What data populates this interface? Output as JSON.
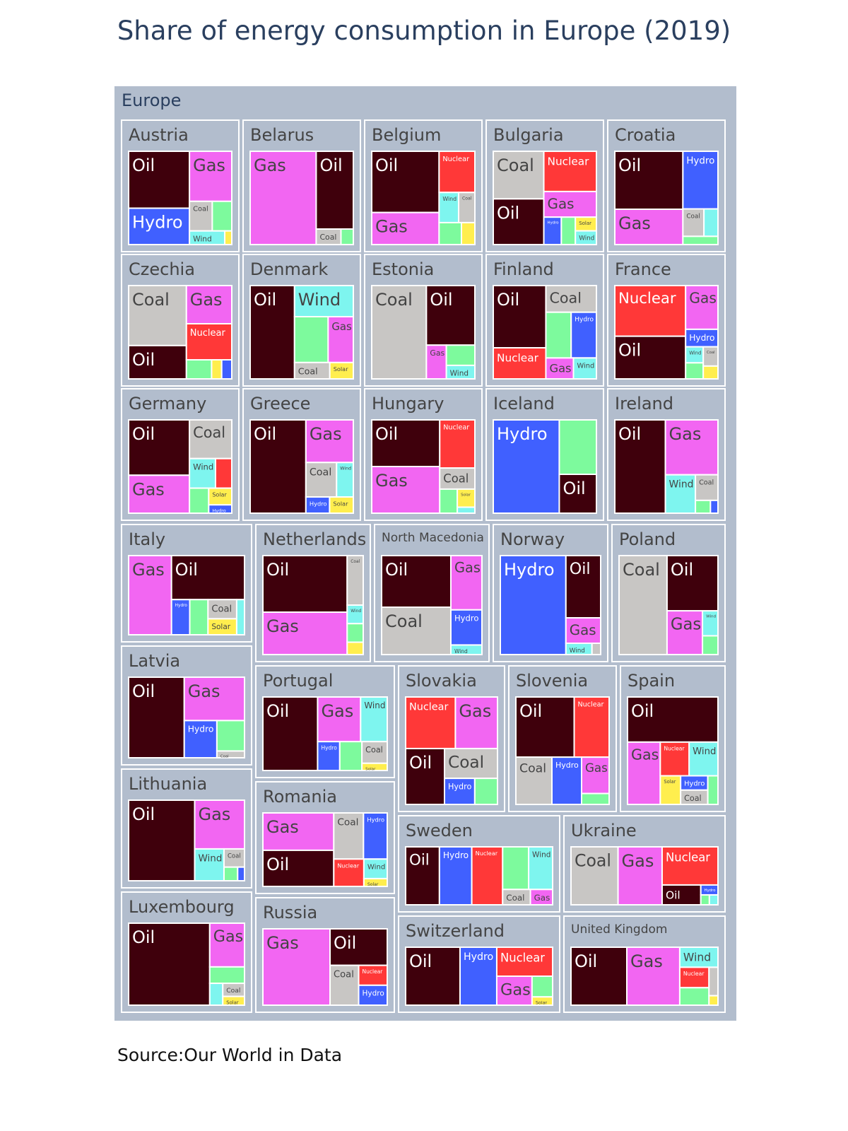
{
  "chart_data": {
    "type": "treemap",
    "title": "Share of energy consumption in Europe (2019)",
    "source": "Source:Our World in Data",
    "root": "Europe",
    "colors": {
      "Oil": "#3f000c",
      "Gas": "#f266f2",
      "Coal": "#c8c6c4",
      "Hydro": "#4060ff",
      "Nuclear": "#ff3838",
      "Wind": "#7ef5ef",
      "Solar": "#ffee4e",
      "Other renewables": "#7dfa9d",
      "parent": "#b2bdcd",
      "root": "#b2bdcd"
    },
    "countries": [
      {
        "name": "Austria",
        "segments": [
          [
            "Oil",
            36
          ],
          [
            "Gas",
            22
          ],
          [
            "Hydro",
            23
          ],
          [
            "Coal",
            7
          ],
          [
            "Other renewables",
            6
          ],
          [
            "Wind",
            5
          ],
          [
            "Solar",
            1
          ]
        ]
      },
      {
        "name": "Belarus",
        "segments": [
          [
            "Gas",
            64
          ],
          [
            "Oil",
            30
          ],
          [
            "Coal",
            4
          ],
          [
            "Other renewables",
            2
          ]
        ]
      },
      {
        "name": "Belgium",
        "segments": [
          [
            "Oil",
            42
          ],
          [
            "Gas",
            22
          ],
          [
            "Nuclear",
            15
          ],
          [
            "Coal",
            5
          ],
          [
            "Wind",
            6
          ],
          [
            "Other renewables",
            5
          ],
          [
            "Solar",
            3
          ]
        ]
      },
      {
        "name": "Bulgaria",
        "segments": [
          [
            "Oil",
            24
          ],
          [
            "Nuclear",
            22
          ],
          [
            "Coal",
            25
          ],
          [
            "Gas",
            14
          ],
          [
            "Hydro",
            5
          ],
          [
            "Other renewables",
            4
          ],
          [
            "Solar",
            3
          ],
          [
            "Wind",
            3
          ]
        ]
      },
      {
        "name": "Croatia",
        "segments": [
          [
            "Oil",
            41
          ],
          [
            "Hydro",
            21
          ],
          [
            "Gas",
            25
          ],
          [
            "Coal",
            6
          ],
          [
            "Wind",
            4
          ],
          [
            "Other renewables",
            3
          ]
        ]
      },
      {
        "name": "Czechia",
        "segments": [
          [
            "Coal",
            36
          ],
          [
            "Gas",
            18
          ],
          [
            "Nuclear",
            17
          ],
          [
            "Oil",
            20
          ],
          [
            "Other renewables",
            5
          ],
          [
            "Solar",
            2
          ],
          [
            "Hydro",
            2
          ]
        ]
      },
      {
        "name": "Denmark",
        "segments": [
          [
            "Oil",
            43
          ],
          [
            "Wind",
            19
          ],
          [
            "Gas",
            12
          ],
          [
            "Other renewables",
            16
          ],
          [
            "Coal",
            6
          ],
          [
            "Solar",
            4
          ]
        ]
      },
      {
        "name": "Estonia",
        "segments": [
          [
            "Coal",
            53
          ],
          [
            "Oil",
            30
          ],
          [
            "Gas",
            7
          ],
          [
            "Other renewables",
            6
          ],
          [
            "Wind",
            4
          ]
        ]
      },
      {
        "name": "Finland",
        "segments": [
          [
            "Oil",
            34
          ],
          [
            "Coal",
            14
          ],
          [
            "Nuclear",
            17
          ],
          [
            "Other renewables",
            12
          ],
          [
            "Hydro",
            12
          ],
          [
            "Gas",
            6
          ],
          [
            "Wind",
            5
          ]
        ]
      },
      {
        "name": "France",
        "segments": [
          [
            "Nuclear",
            38
          ],
          [
            "Gas",
            15
          ],
          [
            "Oil",
            32
          ],
          [
            "Hydro",
            6
          ],
          [
            "Wind",
            3
          ],
          [
            "Other renewables",
            3
          ],
          [
            "Coal",
            3
          ],
          [
            "Solar",
            2
          ]
        ]
      },
      {
        "name": "Germany",
        "segments": [
          [
            "Oil",
            35
          ],
          [
            "Coal",
            17
          ],
          [
            "Gas",
            24
          ],
          [
            "Wind",
            8
          ],
          [
            "Nuclear",
            5
          ],
          [
            "Other renewables",
            5
          ],
          [
            "Solar",
            4
          ],
          [
            "Hydro",
            2
          ]
        ]
      },
      {
        "name": "Greece",
        "segments": [
          [
            "Oil",
            54
          ],
          [
            "Gas",
            21
          ],
          [
            "Coal",
            11
          ],
          [
            "Wind",
            6
          ],
          [
            "Hydro",
            4
          ],
          [
            "Solar",
            4
          ]
        ]
      },
      {
        "name": "Hungary",
        "segments": [
          [
            "Oil",
            30
          ],
          [
            "Nuclear",
            16
          ],
          [
            "Gas",
            30
          ],
          [
            "Coal",
            7
          ],
          [
            "Other renewables",
            4
          ],
          [
            "Solar",
            3
          ],
          [
            "Wind",
            1
          ]
        ]
      },
      {
        "name": "Iceland",
        "segments": [
          [
            "Hydro",
            64
          ],
          [
            "Other renewables",
            21
          ],
          [
            "Oil",
            15
          ]
        ]
      },
      {
        "name": "Ireland",
        "segments": [
          [
            "Oil",
            49
          ],
          [
            "Gas",
            30
          ],
          [
            "Wind",
            12
          ],
          [
            "Coal",
            6
          ],
          [
            "Other renewables",
            2
          ],
          [
            "Hydro",
            1
          ]
        ]
      },
      {
        "name": "Italy",
        "segments": [
          [
            "Gas",
            37
          ],
          [
            "Oil",
            35
          ],
          [
            "Hydro",
            7
          ],
          [
            "Coal",
            6
          ],
          [
            "Other renewables",
            7
          ],
          [
            "Solar",
            5
          ],
          [
            "Wind",
            3
          ]
        ]
      },
      {
        "name": "Latvia",
        "segments": [
          [
            "Oil",
            48
          ],
          [
            "Gas",
            28
          ],
          [
            "Hydro",
            13
          ],
          [
            "Other renewables",
            9
          ],
          [
            "Coal",
            2
          ]
        ]
      },
      {
        "name": "Lithuania",
        "segments": [
          [
            "Oil",
            57
          ],
          [
            "Gas",
            26
          ],
          [
            "Wind",
            10
          ],
          [
            "Coal",
            4
          ],
          [
            "Other renewables",
            2
          ],
          [
            "Hydro",
            1
          ]
        ]
      },
      {
        "name": "Luxembourg",
        "segments": [
          [
            "Oil",
            70
          ],
          [
            "Gas",
            16
          ],
          [
            "Other renewables",
            6
          ],
          [
            "Wind",
            3
          ],
          [
            "Coal",
            3
          ],
          [
            "Solar",
            2
          ]
        ]
      },
      {
        "name": "Netherlands",
        "segments": [
          [
            "Oil",
            48
          ],
          [
            "Gas",
            36
          ],
          [
            "Coal",
            8
          ],
          [
            "Wind",
            3
          ],
          [
            "Other renewables",
            3
          ],
          [
            "Solar",
            2
          ]
        ]
      },
      {
        "name": "North Macedonia",
        "segments": [
          [
            "Oil",
            36
          ],
          [
            "Coal",
            33
          ],
          [
            "Hydro",
            11
          ],
          [
            "Gas",
            17
          ],
          [
            "Wind",
            3
          ]
        ]
      },
      {
        "name": "Norway",
        "segments": [
          [
            "Hydro",
            66
          ],
          [
            "Oil",
            22
          ],
          [
            "Gas",
            9
          ],
          [
            "Wind",
            3
          ],
          [
            "Coal",
            1
          ]
        ]
      },
      {
        "name": "Poland",
        "segments": [
          [
            "Coal",
            49
          ],
          [
            "Oil",
            29
          ],
          [
            "Gas",
            16
          ],
          [
            "Wind",
            4
          ],
          [
            "Other renewables",
            3
          ]
        ]
      },
      {
        "name": "Portugal",
        "segments": [
          [
            "Oil",
            44
          ],
          [
            "Gas",
            21
          ],
          [
            "Wind",
            13
          ],
          [
            "Hydro",
            7
          ],
          [
            "Coal",
            6
          ],
          [
            "Other renewables",
            7
          ],
          [
            "Solar",
            2
          ]
        ]
      },
      {
        "name": "Romania",
        "segments": [
          [
            "Oil",
            28
          ],
          [
            "Gas",
            29
          ],
          [
            "Coal",
            15
          ],
          [
            "Hydro",
            12
          ],
          [
            "Nuclear",
            9
          ],
          [
            "Wind",
            5
          ],
          [
            "Solar",
            2
          ]
        ]
      },
      {
        "name": "Russia",
        "segments": [
          [
            "Gas",
            54
          ],
          [
            "Oil",
            22
          ],
          [
            "Coal",
            12
          ],
          [
            "Nuclear",
            6
          ],
          [
            "Hydro",
            6
          ]
        ]
      },
      {
        "name": "Slovakia",
        "segments": [
          [
            "Gas",
            22
          ],
          [
            "Oil",
            22
          ],
          [
            "Nuclear",
            26
          ],
          [
            "Coal",
            16
          ],
          [
            "Hydro",
            8
          ],
          [
            "Other renewables",
            6
          ]
        ]
      },
      {
        "name": "Slovenia",
        "segments": [
          [
            "Oil",
            35
          ],
          [
            "Nuclear",
            21
          ],
          [
            "Coal",
            17
          ],
          [
            "Hydro",
            14
          ],
          [
            "Gas",
            10
          ],
          [
            "Other renewables",
            3
          ]
        ]
      },
      {
        "name": "Spain",
        "segments": [
          [
            "Oil",
            42
          ],
          [
            "Gas",
            21
          ],
          [
            "Nuclear",
            10
          ],
          [
            "Wind",
            10
          ],
          [
            "Hydro",
            4
          ],
          [
            "Coal",
            4
          ],
          [
            "Solar",
            6
          ],
          [
            "Other renewables",
            3
          ]
        ]
      },
      {
        "name": "Sweden",
        "segments": [
          [
            "Nuclear",
            21
          ],
          [
            "Hydro",
            22
          ],
          [
            "Oil",
            23
          ],
          [
            "Other renewables",
            13
          ],
          [
            "Wind",
            12
          ],
          [
            "Coal",
            5
          ],
          [
            "Gas",
            4
          ]
        ]
      },
      {
        "name": "Switzerland",
        "segments": [
          [
            "Oil",
            37
          ],
          [
            "Hydro",
            25
          ],
          [
            "Nuclear",
            19
          ],
          [
            "Gas",
            12
          ],
          [
            "Other renewables",
            5
          ],
          [
            "Solar",
            2
          ]
        ]
      },
      {
        "name": "Ukraine",
        "segments": [
          [
            "Coal",
            32
          ],
          [
            "Gas",
            30
          ],
          [
            "Nuclear",
            25
          ],
          [
            "Oil",
            9
          ],
          [
            "Hydro",
            2
          ],
          [
            "Other renewables",
            1
          ],
          [
            "Wind",
            1
          ]
        ]
      },
      {
        "name": "United Kingdom",
        "segments": [
          [
            "Oil",
            38
          ],
          [
            "Gas",
            36
          ],
          [
            "Wind",
            9
          ],
          [
            "Nuclear",
            7
          ],
          [
            "Other renewables",
            6
          ],
          [
            "Coal",
            3
          ],
          [
            "Solar",
            1
          ]
        ]
      }
    ]
  }
}
